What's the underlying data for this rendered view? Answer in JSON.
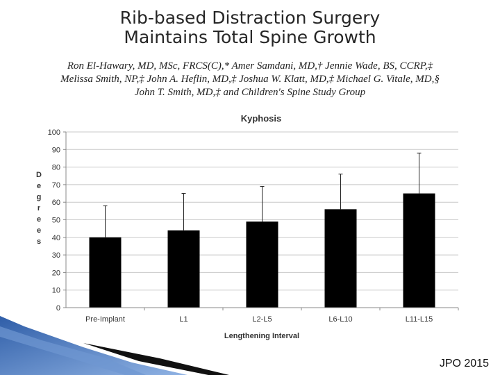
{
  "slide": {
    "title_line1": "Rib-based Distraction Surgery",
    "title_line2": "Maintains Total Spine Growth",
    "authors_line1": "Ron El-Hawary, MD, MSc, FRCS(C),* Amer Samdani, MD,† Jennie Wade, BS, CCRP,‡",
    "authors_line2": "Melissa Smith, NP,‡ John A. Heflin, MD,‡ Joshua W. Klatt, MD,‡ Michael G. Vitale, MD,§",
    "authors_line3": "John T. Smith, MD,‡ and Children's Spine Study Group",
    "citation": "JPO 2015"
  },
  "colors": {
    "bar": "#000000",
    "grid": "#c8c8c8",
    "decor_blue": "#3d6fb8"
  },
  "chart_data": {
    "type": "bar",
    "title": "Kyphosis",
    "xlabel": "Lengthening Interval",
    "ylabel": "Degrees",
    "categories": [
      "Pre-Implant",
      "L1",
      "L2-L5",
      "L6-L10",
      "L11-L15"
    ],
    "values": [
      40,
      44,
      49,
      56,
      65
    ],
    "error_upper": [
      58,
      65,
      69,
      76,
      88
    ],
    "ylim": [
      0,
      100
    ],
    "yticks": [
      0,
      10,
      20,
      30,
      40,
      50,
      60,
      70,
      80,
      90,
      100
    ],
    "grid": true
  }
}
